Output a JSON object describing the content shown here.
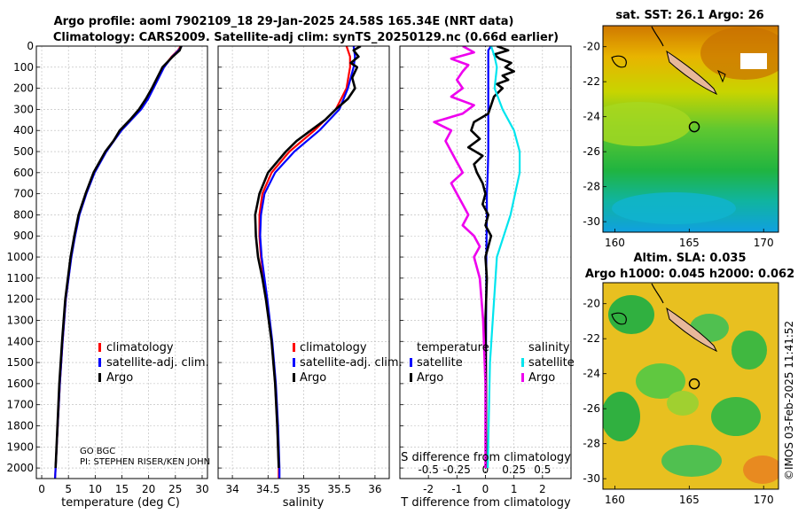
{
  "title": {
    "line1": "Argo profile: aoml 7902109_18 29-Jan-2025 24.58S 165.34E (NRT data)",
    "line2": "Climatology: CARS2009. Satellite-adj clim: synTS_20250129.nc (0.66d earlier)"
  },
  "credit": "©IMOS 03-Feb-2025 11:41:52",
  "pi_text": {
    "line1": "GO BGC",
    "line2": "PI: STEPHEN RISER/KEN JOHN"
  },
  "maps": {
    "sst": {
      "title": "sat. SST: 26.1 Argo: 26"
    },
    "sla": {
      "title1": "Altim. SLA: 0.035",
      "title2": "Argo h1000: 0.045 h2000: 0.062"
    },
    "lon_ticks": [
      "160",
      "165",
      "170"
    ],
    "lat_ticks": [
      "-20",
      "-22",
      "-24",
      "-26",
      "-28",
      "-30"
    ],
    "argo_position": {
      "lon": 165.34,
      "lat": -24.58
    }
  },
  "colors": {
    "climatology": "#ff0000",
    "satellite": "#0000ff",
    "argo": "#000000",
    "sat_salinity": "#00e5ee",
    "argo_salinity": "#ee00ee"
  },
  "chart_data": [
    {
      "type": "line",
      "panel": "temperature",
      "xlabel": "temperature (deg C)",
      "ylabel": "",
      "xlim": [
        -1,
        31
      ],
      "ylim": [
        2050,
        0
      ],
      "xticks": [
        "0",
        "5",
        "10",
        "15",
        "20",
        "25",
        "30"
      ],
      "yticks": [
        "0",
        "100",
        "200",
        "300",
        "400",
        "500",
        "600",
        "700",
        "800",
        "900",
        "1000",
        "1100",
        "1200",
        "1300",
        "1400",
        "1500",
        "1600",
        "1700",
        "1800",
        "1900",
        "2000"
      ],
      "legend": [
        "climatology",
        "satellite-adj. clim.",
        "Argo"
      ],
      "series": [
        {
          "name": "climatology",
          "depth": [
            0,
            20,
            50,
            100,
            150,
            200,
            250,
            300,
            400,
            500,
            600,
            700,
            800,
            900,
            1000,
            1200,
            1400,
            1600,
            1800,
            2000,
            2050
          ],
          "values": [
            26,
            25.5,
            24.3,
            22.8,
            21.8,
            20.8,
            19.8,
            18.5,
            14.8,
            12.0,
            9.8,
            8.3,
            7.0,
            6.2,
            5.5,
            4.5,
            3.9,
            3.4,
            3.0,
            2.6,
            2.5
          ]
        },
        {
          "name": "satellite-adj. clim.",
          "depth": [
            0,
            20,
            50,
            100,
            150,
            200,
            250,
            300,
            400,
            500,
            600,
            700,
            800,
            900,
            1000,
            1200,
            1400,
            1600,
            1800,
            2000,
            2050
          ],
          "values": [
            26.2,
            25.6,
            24.4,
            22.9,
            21.9,
            20.9,
            19.9,
            18.6,
            14.9,
            12.1,
            9.9,
            8.35,
            7.05,
            6.25,
            5.55,
            4.5,
            3.9,
            3.4,
            3.0,
            2.6,
            2.5
          ]
        },
        {
          "name": "Argo",
          "depth": [
            0,
            20,
            50,
            100,
            150,
            200,
            250,
            300,
            350,
            400,
            450,
            500,
            600,
            700,
            800,
            900,
            1000,
            1200,
            1400,
            1600,
            1800,
            2000
          ],
          "values": [
            26.1,
            25.8,
            24.5,
            22.6,
            21.6,
            20.6,
            19.5,
            18.2,
            16.5,
            14.6,
            13.4,
            11.9,
            9.7,
            8.2,
            6.9,
            6.1,
            5.4,
            4.4,
            3.8,
            3.3,
            2.95,
            2.6
          ]
        }
      ]
    },
    {
      "type": "line",
      "panel": "salinity",
      "xlabel": "salinity",
      "xlim": [
        33.8,
        36.2
      ],
      "ylim": [
        2050,
        0
      ],
      "xticks": [
        "34",
        "34.5",
        "35",
        "35.5",
        "36"
      ],
      "legend": [
        "climatology",
        "satellite-adj. clim.",
        "Argo"
      ],
      "series": [
        {
          "name": "climatology",
          "depth": [
            0,
            50,
            100,
            200,
            300,
            400,
            500,
            600,
            700,
            800,
            900,
            1000,
            1100,
            1200,
            1400,
            1600,
            1800,
            2000,
            2050
          ],
          "values": [
            35.6,
            35.65,
            35.65,
            35.6,
            35.45,
            35.15,
            34.8,
            34.55,
            34.42,
            34.38,
            34.38,
            34.4,
            34.44,
            34.48,
            34.55,
            34.6,
            34.63,
            34.65,
            34.65
          ]
        },
        {
          "name": "satellite-adj. clim.",
          "depth": [
            0,
            50,
            100,
            200,
            300,
            400,
            500,
            600,
            700,
            800,
            900,
            1000,
            1100,
            1200,
            1400,
            1600,
            1800,
            2000,
            2050
          ],
          "values": [
            35.7,
            35.72,
            35.7,
            35.62,
            35.5,
            35.22,
            34.87,
            34.6,
            34.45,
            34.4,
            34.39,
            34.41,
            34.45,
            34.49,
            34.56,
            34.61,
            34.64,
            34.66,
            34.66
          ]
        },
        {
          "name": "Argo",
          "depth": [
            0,
            20,
            50,
            80,
            100,
            150,
            200,
            250,
            300,
            350,
            400,
            450,
            500,
            600,
            700,
            800,
            900,
            1000,
            1100,
            1200,
            1300,
            1400,
            1600,
            1800,
            2000
          ],
          "values": [
            35.8,
            35.7,
            35.77,
            35.66,
            35.75,
            35.68,
            35.72,
            35.62,
            35.45,
            35.3,
            35.1,
            34.9,
            34.75,
            34.5,
            34.38,
            34.32,
            34.33,
            34.36,
            34.42,
            34.47,
            34.51,
            34.55,
            34.6,
            34.63,
            34.65
          ]
        }
      ]
    },
    {
      "type": "line",
      "panel": "difference",
      "xlabel_temperature": "T difference from climatology",
      "xlabel_salinity": "S difference from climatology",
      "xlim": [
        -3,
        3
      ],
      "ylim": [
        2050,
        0
      ],
      "xticks": [
        "-2",
        "-1",
        "0",
        "1",
        "2"
      ],
      "s_xticks": [
        "-0.5",
        "-0.25",
        "0",
        "0.25",
        "0.5"
      ],
      "legend": {
        "temperature_header": "temperature",
        "salinity_header": "salinity",
        "temperature": [
          "satellite",
          "Argo"
        ],
        "salinity": [
          "satellite",
          "Argo"
        ]
      },
      "series": [
        {
          "name": "T satellite",
          "depth": [
            0,
            20,
            50,
            100,
            200,
            300,
            400,
            500,
            600,
            700,
            800,
            1000,
            1500,
            2000
          ],
          "values": [
            0.2,
            0.1,
            0.1,
            0.1,
            0.1,
            0.1,
            0.1,
            0.1,
            0.08,
            0.05,
            0.05,
            0.03,
            0.02,
            0.01
          ]
        },
        {
          "name": "T Argo",
          "depth": [
            0,
            20,
            40,
            60,
            80,
            100,
            120,
            140,
            160,
            180,
            200,
            240,
            280,
            320,
            360,
            400,
            440,
            480,
            520,
            560,
            600,
            650,
            700,
            750,
            800,
            850,
            900,
            950,
            1000,
            1100,
            1300,
            1600,
            2000
          ],
          "values": [
            0.4,
            0.8,
            0.3,
            0.5,
            0.9,
            0.7,
            1.0,
            0.6,
            0.8,
            0.4,
            0.6,
            0.3,
            0.2,
            0.1,
            -0.4,
            -0.5,
            -0.2,
            -0.6,
            -0.1,
            -0.4,
            -0.3,
            -0.1,
            0.0,
            -0.1,
            0.1,
            0.0,
            0.2,
            0.1,
            0.0,
            0.05,
            0.0,
            0.02,
            0.02
          ]
        },
        {
          "name": "S satellite",
          "depth": [
            0,
            50,
            100,
            200,
            300,
            400,
            500,
            600,
            800,
            1000,
            1500,
            2000
          ],
          "values": [
            0.05,
            0.08,
            0.1,
            0.08,
            0.15,
            0.25,
            0.3,
            0.3,
            0.22,
            0.1,
            0.04,
            0.02
          ]
        },
        {
          "name": "S Argo",
          "depth": [
            0,
            30,
            60,
            90,
            120,
            160,
            200,
            240,
            280,
            320,
            360,
            400,
            450,
            500,
            550,
            600,
            650,
            700,
            750,
            800,
            850,
            900,
            950,
            1000,
            1100,
            1300,
            1600,
            2000
          ],
          "values": [
            -0.2,
            -0.1,
            -0.3,
            -0.15,
            -0.2,
            -0.25,
            -0.2,
            -0.3,
            -0.1,
            -0.2,
            -0.45,
            -0.3,
            -0.35,
            -0.3,
            -0.25,
            -0.2,
            -0.3,
            -0.25,
            -0.2,
            -0.15,
            -0.2,
            -0.1,
            -0.05,
            -0.1,
            -0.05,
            -0.02,
            0.0,
            0.0
          ]
        }
      ]
    }
  ]
}
